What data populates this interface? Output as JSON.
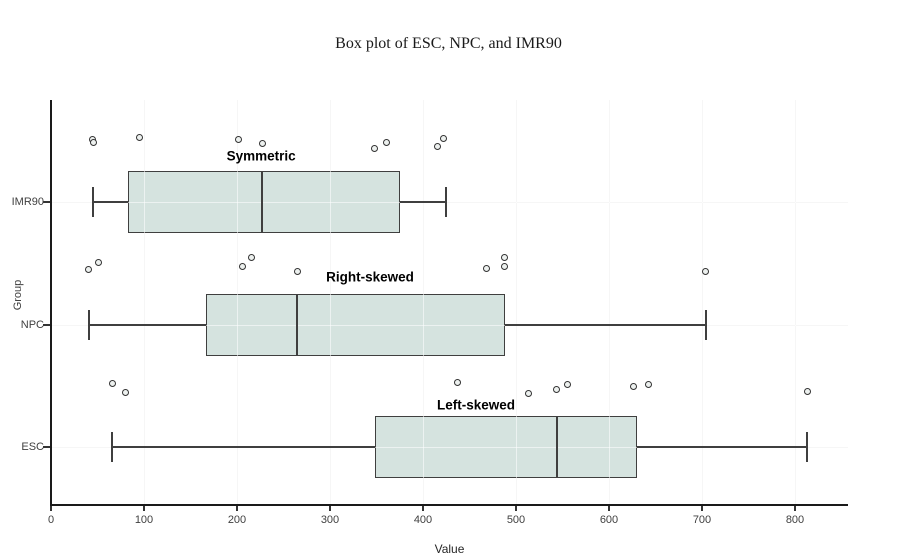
{
  "chart_data": {
    "type": "boxplot",
    "orientation": "horizontal",
    "title": "Box plot of ESC, NPC, and IMR90",
    "xlabel": "Value",
    "ylabel": "Group",
    "xlim": [
      0,
      857
    ],
    "x_ticks": [
      0,
      100,
      200,
      300,
      400,
      500,
      600,
      700,
      800
    ],
    "y_categories_top_to_bottom": [
      "IMR90",
      "NPC",
      "ESC"
    ],
    "grid": true,
    "legend": "none",
    "groups": [
      {
        "label": "IMR90",
        "annotation": "Symmetric",
        "annotation_x": 226,
        "annotation_dy": -46,
        "whisker_low": 45,
        "q1": 83,
        "median": 227,
        "q3": 375,
        "whisker_high": 425,
        "points_x_dy": [
          [
            45,
            -63
          ],
          [
            46,
            -60
          ],
          [
            95,
            -65
          ],
          [
            202,
            -63
          ],
          [
            227,
            -59
          ],
          [
            348,
            -54
          ],
          [
            361,
            -60
          ],
          [
            416,
            -56
          ],
          [
            422,
            -64
          ]
        ]
      },
      {
        "label": "NPC",
        "annotation": "Right-skewed",
        "annotation_x": 343,
        "annotation_dy": -48,
        "whisker_low": 41,
        "q1": 167,
        "median": 265,
        "q3": 488,
        "whisker_high": 704,
        "points_x_dy": [
          [
            40,
            -56
          ],
          [
            51,
            -63
          ],
          [
            206,
            -59
          ],
          [
            216,
            -68
          ],
          [
            265,
            -54
          ],
          [
            468,
            -57
          ],
          [
            488,
            -68
          ],
          [
            488,
            -59
          ],
          [
            704,
            -54
          ]
        ]
      },
      {
        "label": "ESC",
        "annotation": "Left-skewed",
        "annotation_x": 457,
        "annotation_dy": -42,
        "whisker_low": 66,
        "q1": 348,
        "median": 544,
        "q3": 630,
        "whisker_high": 813,
        "points_x_dy": [
          [
            66,
            -64
          ],
          [
            80,
            -55
          ],
          [
            437,
            -65
          ],
          [
            513,
            -54
          ],
          [
            544,
            -58
          ],
          [
            555,
            -63
          ],
          [
            626,
            -61
          ],
          [
            643,
            -63
          ],
          [
            813,
            -56
          ]
        ]
      }
    ]
  },
  "colors": {
    "background": "#ffffff",
    "box_fill": "#d5e3df",
    "box_stroke": "#3f3f3f",
    "median_stroke": "#3f3f3f",
    "whisker_stroke": "#3f3f3f",
    "point_fill": "#edf1ef",
    "point_stroke": "#333333",
    "gridline": "#ebebeb",
    "gridline_over_box": "rgba(255,255,255,0.55)",
    "axis_line": "#1a1a1a",
    "tick_mark": "#333333",
    "tick_label": "#404040",
    "annotation_text": "#000000",
    "title_text": "#1a1a1a"
  }
}
